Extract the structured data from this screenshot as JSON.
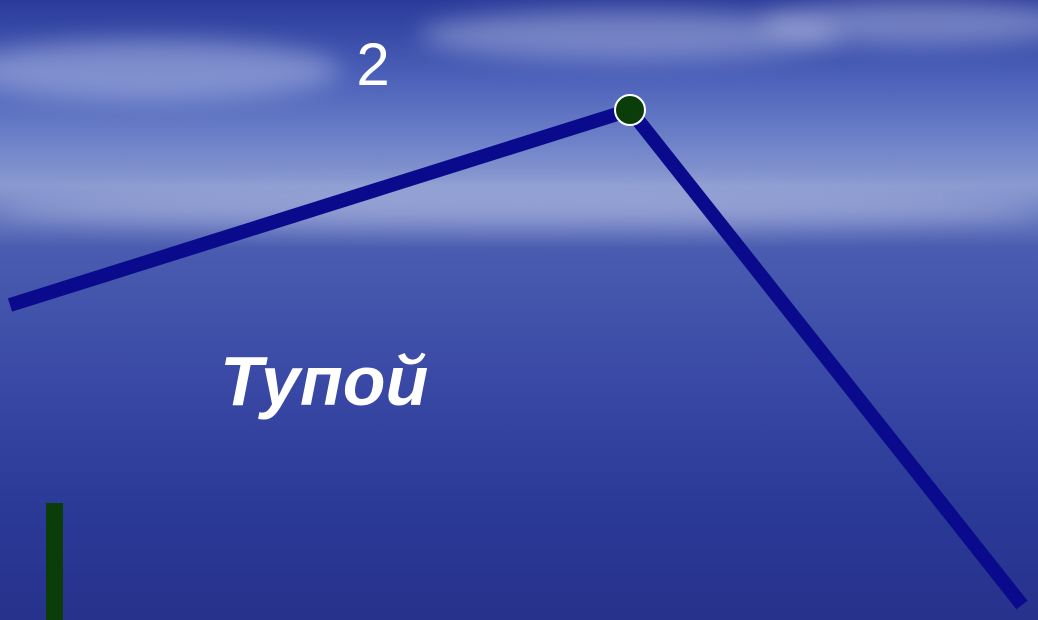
{
  "slide": {
    "number": "2",
    "angle_type": "Тупой"
  }
}
